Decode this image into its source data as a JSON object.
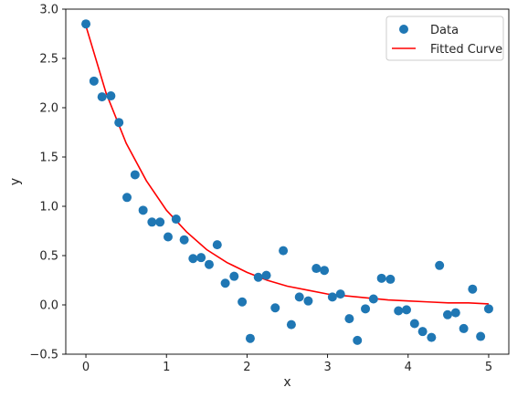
{
  "chart_data": {
    "type": "scatter",
    "xlabel": "x",
    "ylabel": "y",
    "xlim": [
      -0.25,
      5.25
    ],
    "ylim": [
      -0.5,
      3.0
    ],
    "xticks": [
      "0",
      "1",
      "2",
      "3",
      "4",
      "5"
    ],
    "yticks": [
      "−0.5",
      "0.0",
      "0.5",
      "1.0",
      "1.5",
      "2.0",
      "2.5",
      "3.0"
    ],
    "grid": false,
    "legend_position": "top-right",
    "series": [
      {
        "name": "Data",
        "kind": "scatter",
        "color": "#1f77b4",
        "points": [
          [
            0.0,
            2.85
          ],
          [
            0.1,
            2.27
          ],
          [
            0.2,
            2.11
          ],
          [
            0.31,
            2.12
          ],
          [
            0.41,
            1.85
          ],
          [
            0.51,
            1.09
          ],
          [
            0.61,
            1.32
          ],
          [
            0.71,
            0.96
          ],
          [
            0.82,
            0.84
          ],
          [
            0.92,
            0.84
          ],
          [
            1.02,
            0.69
          ],
          [
            1.12,
            0.87
          ],
          [
            1.22,
            0.66
          ],
          [
            1.33,
            0.47
          ],
          [
            1.43,
            0.48
          ],
          [
            1.53,
            0.41
          ],
          [
            1.63,
            0.61
          ],
          [
            1.73,
            0.22
          ],
          [
            1.84,
            0.29
          ],
          [
            1.94,
            0.03
          ],
          [
            2.04,
            -0.34
          ],
          [
            2.14,
            0.28
          ],
          [
            2.24,
            0.3
          ],
          [
            2.35,
            -0.03
          ],
          [
            2.45,
            0.55
          ],
          [
            2.55,
            -0.2
          ],
          [
            2.65,
            0.08
          ],
          [
            2.76,
            0.04
          ],
          [
            2.86,
            0.37
          ],
          [
            2.96,
            0.35
          ],
          [
            3.06,
            0.08
          ],
          [
            3.16,
            0.11
          ],
          [
            3.27,
            -0.14
          ],
          [
            3.37,
            -0.36
          ],
          [
            3.47,
            -0.04
          ],
          [
            3.57,
            0.06
          ],
          [
            3.67,
            0.27
          ],
          [
            3.78,
            0.26
          ],
          [
            3.88,
            -0.06
          ],
          [
            3.98,
            -0.05
          ],
          [
            4.08,
            -0.19
          ],
          [
            4.18,
            -0.27
          ],
          [
            4.29,
            -0.33
          ],
          [
            4.39,
            0.4
          ],
          [
            4.49,
            -0.1
          ],
          [
            4.59,
            -0.08
          ],
          [
            4.69,
            -0.24
          ],
          [
            4.8,
            0.16
          ],
          [
            4.9,
            -0.32
          ],
          [
            5.0,
            -0.04
          ]
        ]
      },
      {
        "name": "Fitted Curve",
        "kind": "line",
        "color": "#ff0000",
        "points": [
          [
            0.0,
            2.83
          ],
          [
            0.25,
            2.15
          ],
          [
            0.5,
            1.64
          ],
          [
            0.75,
            1.26
          ],
          [
            1.0,
            0.96
          ],
          [
            1.25,
            0.74
          ],
          [
            1.5,
            0.56
          ],
          [
            1.75,
            0.43
          ],
          [
            2.0,
            0.33
          ],
          [
            2.25,
            0.25
          ],
          [
            2.5,
            0.19
          ],
          [
            2.75,
            0.15
          ],
          [
            3.0,
            0.11
          ],
          [
            3.25,
            0.09
          ],
          [
            3.5,
            0.07
          ],
          [
            3.75,
            0.05
          ],
          [
            4.0,
            0.04
          ],
          [
            4.25,
            0.03
          ],
          [
            4.5,
            0.02
          ],
          [
            4.75,
            0.02
          ],
          [
            5.0,
            0.01
          ]
        ]
      }
    ]
  }
}
